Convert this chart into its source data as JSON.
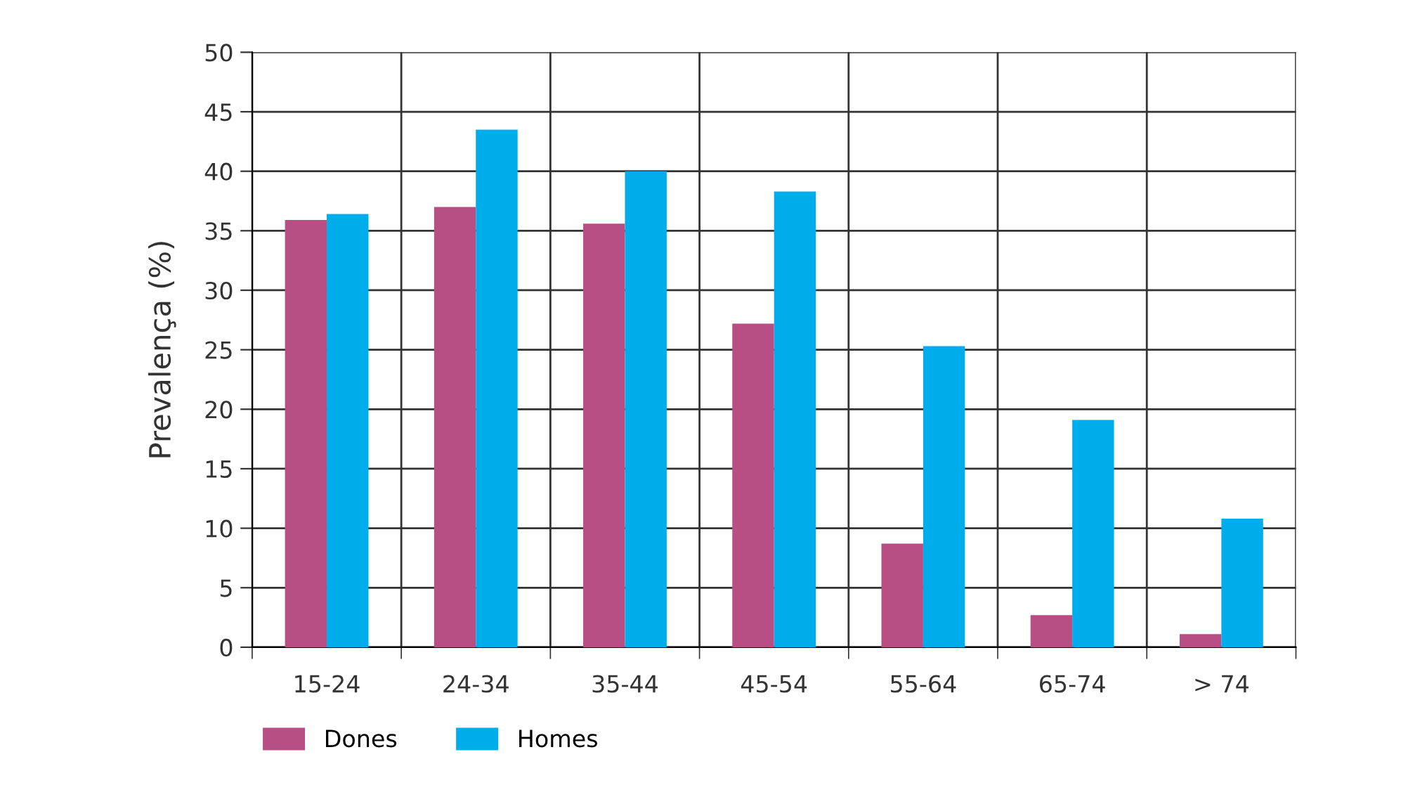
{
  "chart_data": {
    "type": "bar",
    "ylabel": "Prevalença (%)",
    "categories": [
      "15-24",
      "24-34",
      "35-44",
      "45-54",
      "55-64",
      "65-74",
      "> 74"
    ],
    "series": [
      {
        "name": "Dones",
        "color": "#b84f84",
        "values": [
          35.9,
          37.0,
          35.6,
          27.2,
          8.7,
          2.7,
          1.1
        ]
      },
      {
        "name": "Homes",
        "color": "#00adeb",
        "values": [
          36.4,
          43.5,
          40.0,
          38.3,
          25.3,
          19.1,
          10.8
        ]
      }
    ],
    "ylim": [
      0,
      50
    ],
    "yticks": [
      0,
      5,
      10,
      15,
      20,
      25,
      30,
      35,
      40,
      45,
      50
    ],
    "grid": true,
    "legend": "bottom left"
  }
}
